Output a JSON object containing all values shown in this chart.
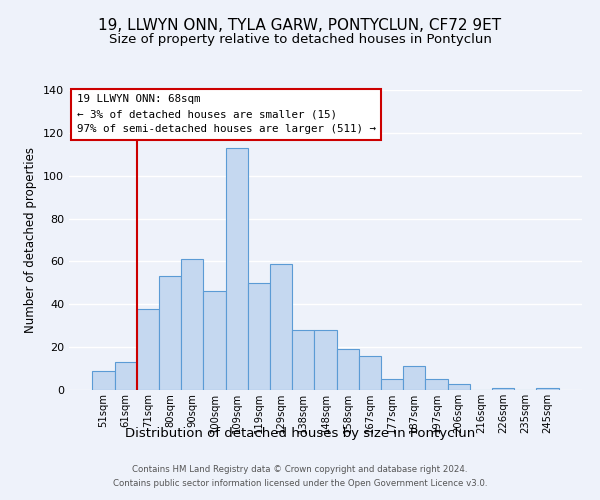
{
  "title": "19, LLWYN ONN, TYLA GARW, PONTYCLUN, CF72 9ET",
  "subtitle": "Size of property relative to detached houses in Pontyclun",
  "xlabel": "Distribution of detached houses by size in Pontyclun",
  "ylabel": "Number of detached properties",
  "categories": [
    "51sqm",
    "61sqm",
    "71sqm",
    "80sqm",
    "90sqm",
    "100sqm",
    "109sqm",
    "119sqm",
    "129sqm",
    "138sqm",
    "148sqm",
    "158sqm",
    "167sqm",
    "177sqm",
    "187sqm",
    "197sqm",
    "206sqm",
    "216sqm",
    "226sqm",
    "235sqm",
    "245sqm"
  ],
  "values": [
    9,
    13,
    38,
    53,
    61,
    46,
    113,
    50,
    59,
    28,
    28,
    19,
    16,
    5,
    11,
    5,
    3,
    0,
    1,
    0,
    1
  ],
  "bar_color": "#c5d8f0",
  "bar_edge_color": "#5b9bd5",
  "reference_line_color": "#cc0000",
  "ylim": [
    0,
    140
  ],
  "yticks": [
    0,
    20,
    40,
    60,
    80,
    100,
    120,
    140
  ],
  "annotation_title": "19 LLWYN ONN: 68sqm",
  "annotation_line1": "← 3% of detached houses are smaller (15)",
  "annotation_line2": "97% of semi-detached houses are larger (511) →",
  "annotation_box_color": "#cc0000",
  "footer_line1": "Contains HM Land Registry data © Crown copyright and database right 2024.",
  "footer_line2": "Contains public sector information licensed under the Open Government Licence v3.0.",
  "background_color": "#eef2fa",
  "plot_bg_color": "#eef2fa",
  "title_fontsize": 11,
  "subtitle_fontsize": 9.5,
  "ylabel_fontsize": 8.5,
  "xlabel_fontsize": 9.5
}
